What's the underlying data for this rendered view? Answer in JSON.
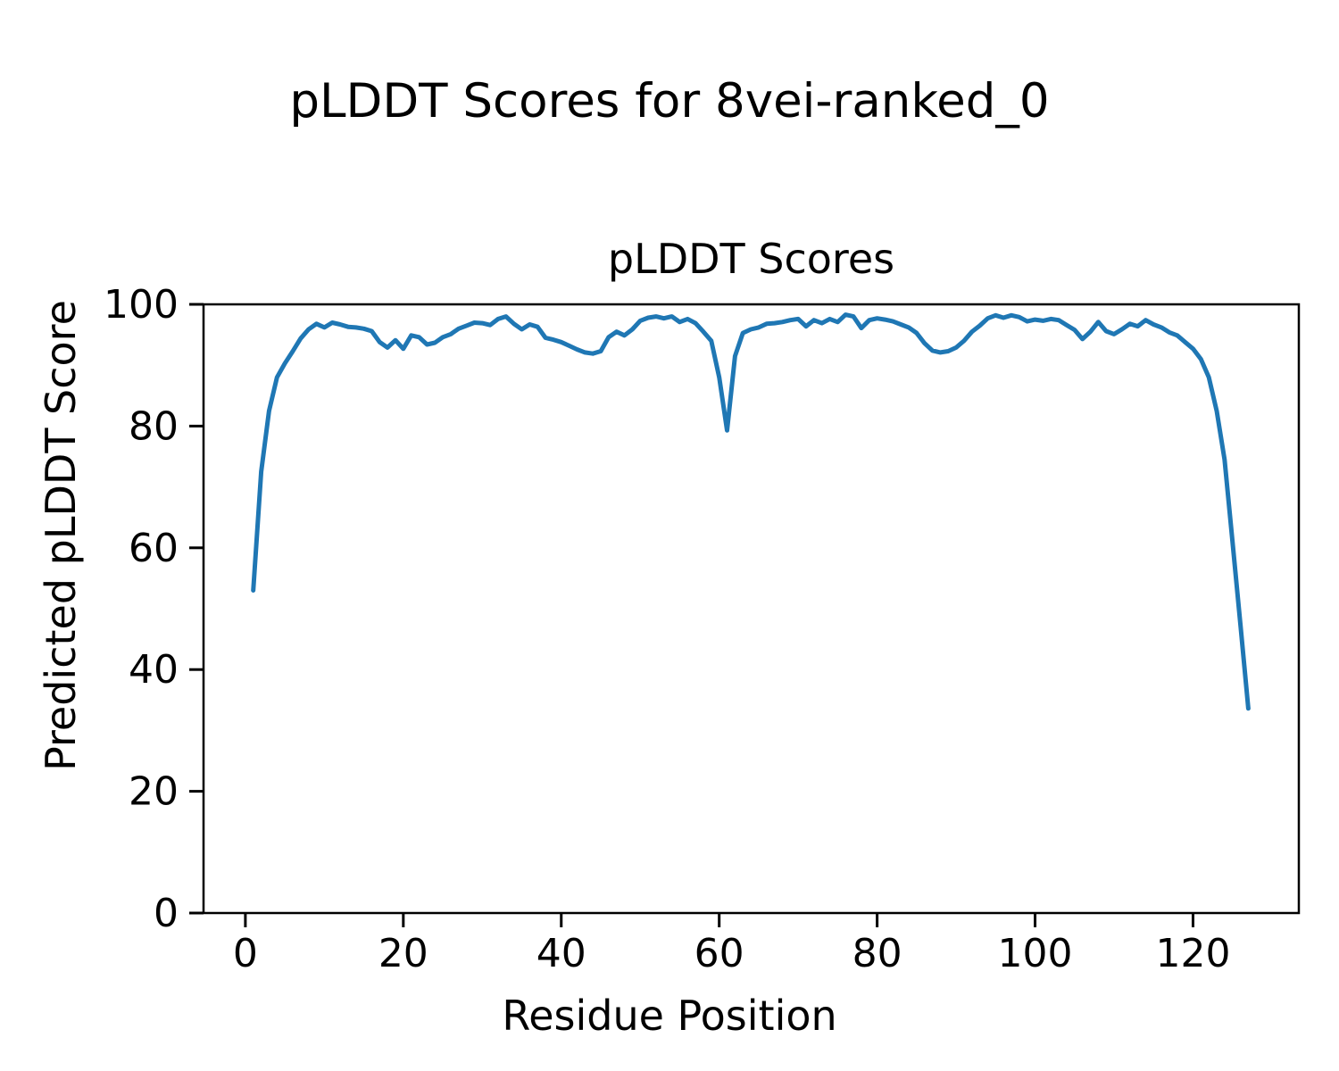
{
  "figure": {
    "suptitle": "pLDDT Scores for 8vei-ranked_0"
  },
  "chart_data": {
    "type": "line",
    "title": "pLDDT Scores",
    "xlabel": "Residue Position",
    "ylabel": "Predicted pLDDT Score",
    "xlim": [
      -5.3,
      133.4
    ],
    "ylim": [
      0,
      100
    ],
    "x_ticks": [
      0,
      20,
      40,
      60,
      80,
      100,
      120
    ],
    "y_ticks": [
      0,
      20,
      40,
      60,
      80,
      100
    ],
    "grid": false,
    "legend": "none",
    "line_color": "#1f77b4",
    "line_width": 5,
    "frame_color": "#000000",
    "series": [
      {
        "name": "pLDDT",
        "x": [
          1,
          2,
          3,
          4,
          5,
          6,
          7,
          8,
          9,
          10,
          11,
          12,
          13,
          14,
          15,
          16,
          17,
          18,
          19,
          20,
          21,
          22,
          23,
          24,
          25,
          26,
          27,
          28,
          29,
          30,
          31,
          32,
          33,
          34,
          35,
          36,
          37,
          38,
          39,
          40,
          41,
          42,
          43,
          44,
          45,
          46,
          47,
          48,
          49,
          50,
          51,
          52,
          53,
          54,
          55,
          56,
          57,
          58,
          59,
          60,
          61,
          62,
          63,
          64,
          65,
          66,
          67,
          68,
          69,
          70,
          71,
          72,
          73,
          74,
          75,
          76,
          77,
          78,
          79,
          80,
          81,
          82,
          83,
          84,
          85,
          86,
          87,
          88,
          89,
          90,
          91,
          92,
          93,
          94,
          95,
          96,
          97,
          98,
          99,
          100,
          101,
          102,
          103,
          104,
          105,
          106,
          107,
          108,
          109,
          110,
          111,
          112,
          113,
          114,
          115,
          116,
          117,
          118,
          119,
          120,
          121,
          122,
          123,
          124,
          125,
          126,
          127
        ],
        "y": [
          53.0,
          72.5,
          82.5,
          88.0,
          90.3,
          92.3,
          94.4,
          95.9,
          96.8,
          96.2,
          97.0,
          96.7,
          96.3,
          96.2,
          96.0,
          95.6,
          93.8,
          92.9,
          94.1,
          92.7,
          94.9,
          94.6,
          93.4,
          93.7,
          94.6,
          95.1,
          96.0,
          96.5,
          97.0,
          96.9,
          96.6,
          97.6,
          98.0,
          96.8,
          95.9,
          96.7,
          96.3,
          94.5,
          94.2,
          93.8,
          93.2,
          92.6,
          92.1,
          91.9,
          92.3,
          94.6,
          95.5,
          94.9,
          95.9,
          97.3,
          97.8,
          98.0,
          97.7,
          98.0,
          97.1,
          97.6,
          96.9,
          95.5,
          94.0,
          88.0,
          79.3,
          91.5,
          95.3,
          95.9,
          96.2,
          96.8,
          96.9,
          97.1,
          97.4,
          97.6,
          96.4,
          97.4,
          96.9,
          97.6,
          97.1,
          98.3,
          98.0,
          96.1,
          97.4,
          97.7,
          97.5,
          97.2,
          96.7,
          96.2,
          95.3,
          93.6,
          92.4,
          92.1,
          92.3,
          92.9,
          94.0,
          95.5,
          96.5,
          97.7,
          98.2,
          97.8,
          98.2,
          97.9,
          97.2,
          97.5,
          97.3,
          97.6,
          97.4,
          96.6,
          95.8,
          94.3,
          95.5,
          97.1,
          95.6,
          95.1,
          95.9,
          96.8,
          96.4,
          97.4,
          96.7,
          96.2,
          95.4,
          94.9,
          93.8,
          92.7,
          91.0,
          88.0,
          82.5,
          74.5,
          61.0,
          47.5,
          33.6
        ]
      }
    ]
  }
}
